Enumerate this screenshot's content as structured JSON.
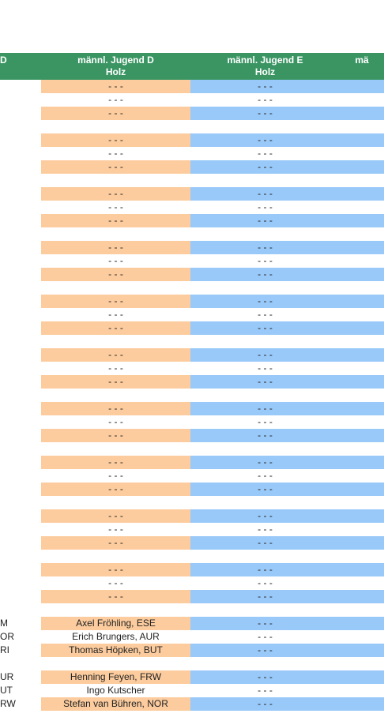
{
  "header": {
    "col0": "D",
    "col1_line1": "männl. Jugend D",
    "col1_line2": "Holz",
    "col2_line1": "männl. Jugend E",
    "col2_line2": "Holz",
    "col3": "mä"
  },
  "colors": {
    "header": "#3a9563",
    "peach": "#fccc9e",
    "blue": "#99c9f9",
    "white": "#ffffff"
  },
  "rows": [
    {
      "c0": "",
      "c1": "- - -",
      "c2": "- - -",
      "fill": "peach"
    },
    {
      "c0": "",
      "c1": "- - -",
      "c2": "- - -",
      "fill": "white"
    },
    {
      "c0": "",
      "c1": "- - -",
      "c2": "- - -",
      "fill": "peach"
    },
    {
      "c0": "",
      "c1": "",
      "c2": "",
      "fill": "gap"
    },
    {
      "c0": "",
      "c1": "- - -",
      "c2": "- - -",
      "fill": "peach"
    },
    {
      "c0": "",
      "c1": "- - -",
      "c2": "- - -",
      "fill": "white"
    },
    {
      "c0": "",
      "c1": "- - -",
      "c2": "- - -",
      "fill": "peach"
    },
    {
      "c0": "",
      "c1": "",
      "c2": "",
      "fill": "gap"
    },
    {
      "c0": "",
      "c1": "- - -",
      "c2": "- - -",
      "fill": "peach"
    },
    {
      "c0": "",
      "c1": "- - -",
      "c2": "- - -",
      "fill": "white"
    },
    {
      "c0": "",
      "c1": "- - -",
      "c2": "- - -",
      "fill": "peach"
    },
    {
      "c0": "",
      "c1": "",
      "c2": "",
      "fill": "gap"
    },
    {
      "c0": "",
      "c1": "- - -",
      "c2": "- - -",
      "fill": "peach"
    },
    {
      "c0": "",
      "c1": "- - -",
      "c2": "- - -",
      "fill": "white"
    },
    {
      "c0": "",
      "c1": "- - -",
      "c2": "- - -",
      "fill": "peach"
    },
    {
      "c0": "",
      "c1": "",
      "c2": "",
      "fill": "gap"
    },
    {
      "c0": "",
      "c1": "- - -",
      "c2": "- - -",
      "fill": "peach"
    },
    {
      "c0": "",
      "c1": "- - -",
      "c2": "- - -",
      "fill": "white"
    },
    {
      "c0": "",
      "c1": "- - -",
      "c2": "- - -",
      "fill": "peach"
    },
    {
      "c0": "",
      "c1": "",
      "c2": "",
      "fill": "gap"
    },
    {
      "c0": "",
      "c1": "- - -",
      "c2": "- - -",
      "fill": "peach"
    },
    {
      "c0": "",
      "c1": "- - -",
      "c2": "- - -",
      "fill": "white"
    },
    {
      "c0": "",
      "c1": "- - -",
      "c2": "- - -",
      "fill": "peach"
    },
    {
      "c0": "",
      "c1": "",
      "c2": "",
      "fill": "gap"
    },
    {
      "c0": "",
      "c1": "- - -",
      "c2": "- - -",
      "fill": "peach"
    },
    {
      "c0": "",
      "c1": "- - -",
      "c2": "- - -",
      "fill": "white"
    },
    {
      "c0": "",
      "c1": "- - -",
      "c2": "- - -",
      "fill": "peach"
    },
    {
      "c0": "",
      "c1": "",
      "c2": "",
      "fill": "gap"
    },
    {
      "c0": "",
      "c1": "- - -",
      "c2": "- - -",
      "fill": "peach"
    },
    {
      "c0": "",
      "c1": "- - -",
      "c2": "- - -",
      "fill": "white"
    },
    {
      "c0": "",
      "c1": "- - -",
      "c2": "- - -",
      "fill": "peach"
    },
    {
      "c0": "",
      "c1": "",
      "c2": "",
      "fill": "gap"
    },
    {
      "c0": "",
      "c1": "- - -",
      "c2": "- - -",
      "fill": "peach"
    },
    {
      "c0": "",
      "c1": "- - -",
      "c2": "- - -",
      "fill": "white"
    },
    {
      "c0": "",
      "c1": "- - -",
      "c2": "- - -",
      "fill": "peach"
    },
    {
      "c0": "",
      "c1": "",
      "c2": "",
      "fill": "gap"
    },
    {
      "c0": "",
      "c1": "- - -",
      "c2": "- - -",
      "fill": "peach"
    },
    {
      "c0": "",
      "c1": "- - -",
      "c2": "- - -",
      "fill": "white"
    },
    {
      "c0": "",
      "c1": "- - -",
      "c2": "- - -",
      "fill": "peach"
    },
    {
      "c0": "",
      "c1": "",
      "c2": "",
      "fill": "gap"
    },
    {
      "c0": "M",
      "c1": "Axel Fröhling, ESE",
      "c2": "- - -",
      "fill": "peach"
    },
    {
      "c0": "OR",
      "c1": "Erich Brungers, AUR",
      "c2": "- - -",
      "fill": "white"
    },
    {
      "c0": "RI",
      "c1": "Thomas Höpken, BUT",
      "c2": "- - -",
      "fill": "peach"
    },
    {
      "c0": "",
      "c1": "",
      "c2": "",
      "fill": "gap"
    },
    {
      "c0": "UR",
      "c1": "Henning Feyen, FRW",
      "c2": "- - -",
      "fill": "peach"
    },
    {
      "c0": "UT",
      "c1": "Ingo Kutscher",
      "c2": "- - -",
      "fill": "white"
    },
    {
      "c0": "RW",
      "c1": "Stefan van Bühren, NOR",
      "c2": "- - -",
      "fill": "peach"
    }
  ]
}
